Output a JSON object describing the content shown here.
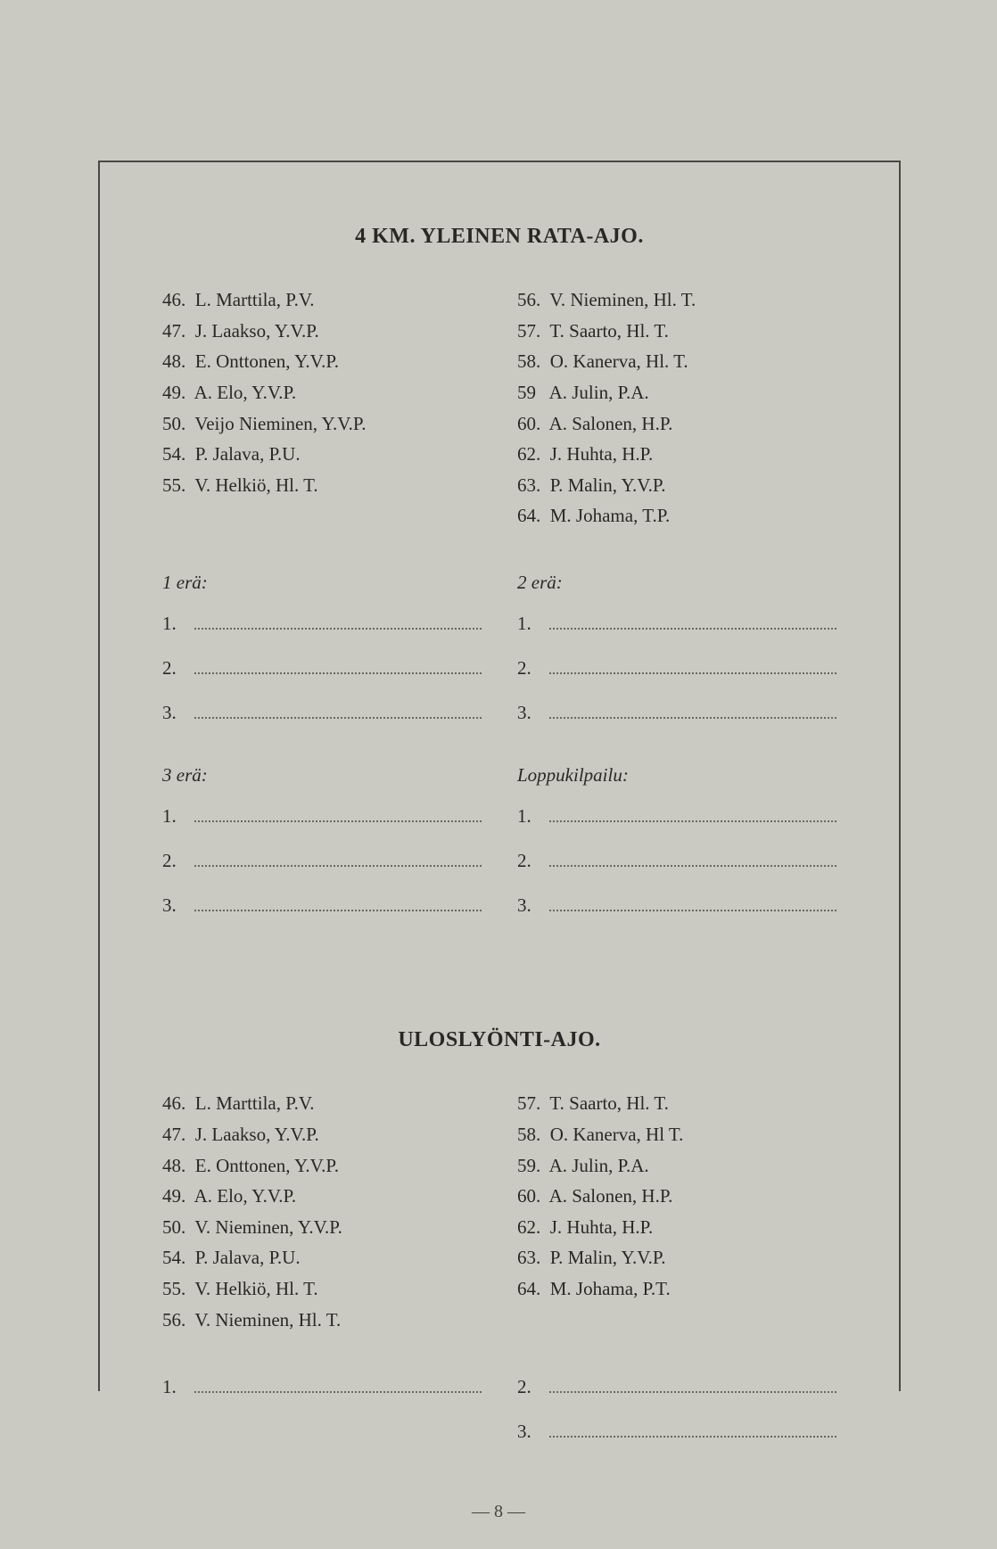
{
  "page_number_text": "— 8 —",
  "colors": {
    "background": "#cbcac2",
    "text": "#2a2824",
    "border": "#4a4842",
    "dots": "#6a685f"
  },
  "typography": {
    "title_fontsize": 24,
    "body_fontsize": 21,
    "font_family": "Georgia"
  },
  "section1": {
    "title": "4 KM. YLEINEN RATA-AJO.",
    "left": [
      {
        "n": "46.",
        "t": "L. Marttila, P.V."
      },
      {
        "n": "47.",
        "t": "J. Laakso, Y.V.P."
      },
      {
        "n": "48.",
        "t": "E. Onttonen, Y.V.P."
      },
      {
        "n": "49.",
        "t": "A. Elo, Y.V.P."
      },
      {
        "n": "50.",
        "t": "Veijo Nieminen, Y.V.P."
      },
      {
        "n": "54.",
        "t": "P. Jalava, P.U."
      },
      {
        "n": "55.",
        "t": "V. Helkiö, Hl. T."
      }
    ],
    "right": [
      {
        "n": "56.",
        "t": "V. Nieminen, Hl. T."
      },
      {
        "n": "57.",
        "t": "T. Saarto, Hl. T."
      },
      {
        "n": "58.",
        "t": "O. Kanerva, Hl. T."
      },
      {
        "n": "59",
        "t": "A. Julin, P.A."
      },
      {
        "n": "60.",
        "t": "A. Salonen, H.P."
      },
      {
        "n": "62.",
        "t": "J. Huhta, H.P."
      },
      {
        "n": "63.",
        "t": "P. Malin, Y.V.P."
      },
      {
        "n": "64.",
        "t": "M. Johama, T.P."
      }
    ],
    "heats_left": [
      {
        "header": "1  erä:",
        "lines": [
          "1.",
          "2.",
          "3."
        ]
      },
      {
        "header": "3  erä:",
        "lines": [
          "1.",
          "2.",
          "3."
        ]
      }
    ],
    "heats_right": [
      {
        "header": "2  erä:",
        "lines": [
          "1.",
          "2.",
          "3."
        ]
      },
      {
        "header": "Loppukilpailu:",
        "lines": [
          "1.",
          "2.",
          "3."
        ]
      }
    ]
  },
  "section2": {
    "title": "ULOSLYÖNTI-AJO.",
    "left": [
      {
        "n": "46.",
        "t": "L. Marttila, P.V."
      },
      {
        "n": "47.",
        "t": "J. Laakso, Y.V.P."
      },
      {
        "n": "48.",
        "t": "E. Onttonen, Y.V.P."
      },
      {
        "n": "49.",
        "t": "A. Elo, Y.V.P."
      },
      {
        "n": "50.",
        "t": "V. Nieminen, Y.V.P."
      },
      {
        "n": "54.",
        "t": "P. Jalava, P.U."
      },
      {
        "n": "55.",
        "t": "V. Helkiö, Hl. T."
      },
      {
        "n": "56.",
        "t": "V. Nieminen, Hl. T."
      }
    ],
    "right": [
      {
        "n": "57.",
        "t": "T. Saarto, Hl. T."
      },
      {
        "n": "58.",
        "t": "O. Kanerva, Hl T."
      },
      {
        "n": "59.",
        "t": "A. Julin, P.A."
      },
      {
        "n": "60.",
        "t": "A. Salonen, H.P."
      },
      {
        "n": "62.",
        "t": "J. Huhta, H.P."
      },
      {
        "n": "63.",
        "t": "P. Malin, Y.V.P."
      },
      {
        "n": "64.",
        "t": "M. Johama, P.T."
      }
    ],
    "results_left": {
      "lines": [
        "1."
      ]
    },
    "results_right": {
      "lines": [
        "2.",
        "3."
      ]
    }
  }
}
